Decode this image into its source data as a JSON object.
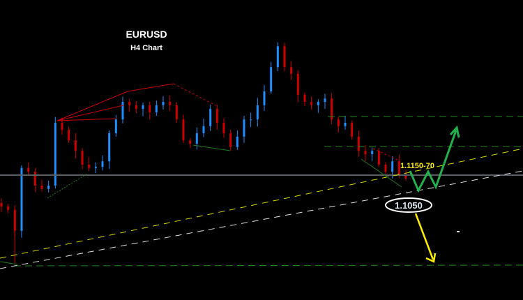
{
  "header": {
    "symbol": "EURUSD",
    "timeframe": "H4 Chart"
  },
  "annotations": {
    "target_zone_label": "1.1150-70",
    "support_label": "1.1050"
  },
  "colors": {
    "background": "#000000",
    "bull_candle": "#1e8fff",
    "bear_candle": "#d00000",
    "support_trendline": "#d8d800",
    "lower_trendline": "#e0e0e0",
    "level_lines": "#1f8a1f",
    "bullish_path": "#22b14c",
    "bearish_arrow": "#ffee00"
  },
  "chart_data": {
    "type": "candlestick",
    "title": "EURUSD",
    "subtitle": "H4 Chart",
    "grid": false,
    "closes": [
      1.1075,
      1.1067,
      1.1017,
      1.1167,
      1.1158,
      1.1125,
      1.1117,
      1.1125,
      1.1275,
      1.1258,
      1.1233,
      1.1208,
      1.1175,
      1.1167,
      1.117,
      1.1183,
      1.125,
      1.1283,
      1.1325,
      1.1317,
      1.1308,
      1.1317,
      1.13,
      1.1317,
      1.1325,
      1.1317,
      1.1283,
      1.1233,
      1.1225,
      1.125,
      1.1267,
      1.1308,
      1.1275,
      1.125,
      1.1217,
      1.1242,
      1.1283,
      1.1283,
      1.1317,
      1.135,
      1.1408,
      1.1458,
      1.1408,
      1.1392,
      1.1342,
      1.1325,
      1.1317,
      1.1325,
      1.1333,
      1.1283,
      1.1267,
      1.1275,
      1.1242,
      1.1208,
      1.12,
      1.1208,
      1.1175,
      1.1158,
      1.1183,
      1.115,
      1.1142
    ],
    "levels": {
      "target_zone": "1.1150-70",
      "support": 1.105
    }
  }
}
